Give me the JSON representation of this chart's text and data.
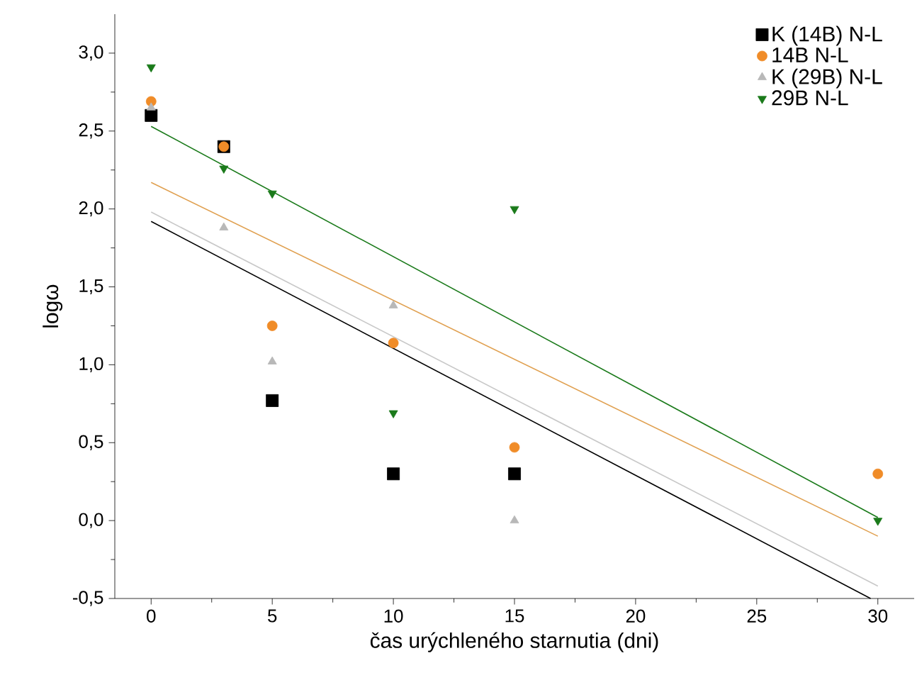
{
  "chart_data": {
    "type": "scatter",
    "xlabel": "čas urýchleného starnutia (dni)",
    "ylabel": "logω",
    "xlim": [
      -1.5,
      31.5
    ],
    "ylim": [
      -0.5,
      3.25
    ],
    "xticks": [
      0,
      5,
      10,
      15,
      20,
      25,
      30
    ],
    "yticks": [
      {
        "value": -0.5,
        "label": "-0,5"
      },
      {
        "value": 0,
        "label": "0,0"
      },
      {
        "value": 0.5,
        "label": "0,5"
      },
      {
        "value": 1,
        "label": "1,0"
      },
      {
        "value": 1.5,
        "label": "1,5"
      },
      {
        "value": 2,
        "label": "2,0"
      },
      {
        "value": 2.5,
        "label": "2,5"
      },
      {
        "value": 3,
        "label": "3,0"
      }
    ],
    "grid": false,
    "legend": "top right",
    "x": [
      0,
      3,
      5,
      10,
      15,
      30
    ],
    "series": [
      {
        "name": "K (14B) N-L",
        "color": "#000000",
        "marker": "square",
        "values": [
          2.6,
          2.4,
          0.77,
          0.3,
          0.3,
          null
        ]
      },
      {
        "name": "14B N-L",
        "color": "#f08c28",
        "marker": "circle",
        "values": [
          2.69,
          2.4,
          1.25,
          1.14,
          0.47,
          0.3
        ]
      },
      {
        "name": "K (29B) N-L",
        "color": "#b8b8b8",
        "marker": "triangle",
        "values": [
          2.65,
          1.88,
          1.02,
          1.38,
          0.0,
          null
        ]
      },
      {
        "name": "29B N-L",
        "color": "#1a7a1a",
        "marker": "triangle-down",
        "values": [
          2.91,
          2.26,
          2.1,
          0.69,
          2.0,
          0.0
        ]
      },
      {
        "type": "line",
        "color": "#000000",
        "marker": "none",
        "x": [
          0,
          29.7
        ],
        "values": [
          1.92,
          -0.5
        ]
      },
      {
        "type": "line",
        "color": "#c8c8c8",
        "marker": "none",
        "x": [
          0,
          30
        ],
        "values": [
          1.98,
          -0.42
        ]
      },
      {
        "type": "line",
        "color": "#e0a050",
        "marker": "none",
        "x": [
          0,
          30
        ],
        "values": [
          2.17,
          -0.1
        ]
      },
      {
        "type": "line",
        "color": "#1a7a1a",
        "marker": "none",
        "x": [
          0,
          30
        ],
        "values": [
          2.53,
          0.02
        ]
      }
    ]
  }
}
